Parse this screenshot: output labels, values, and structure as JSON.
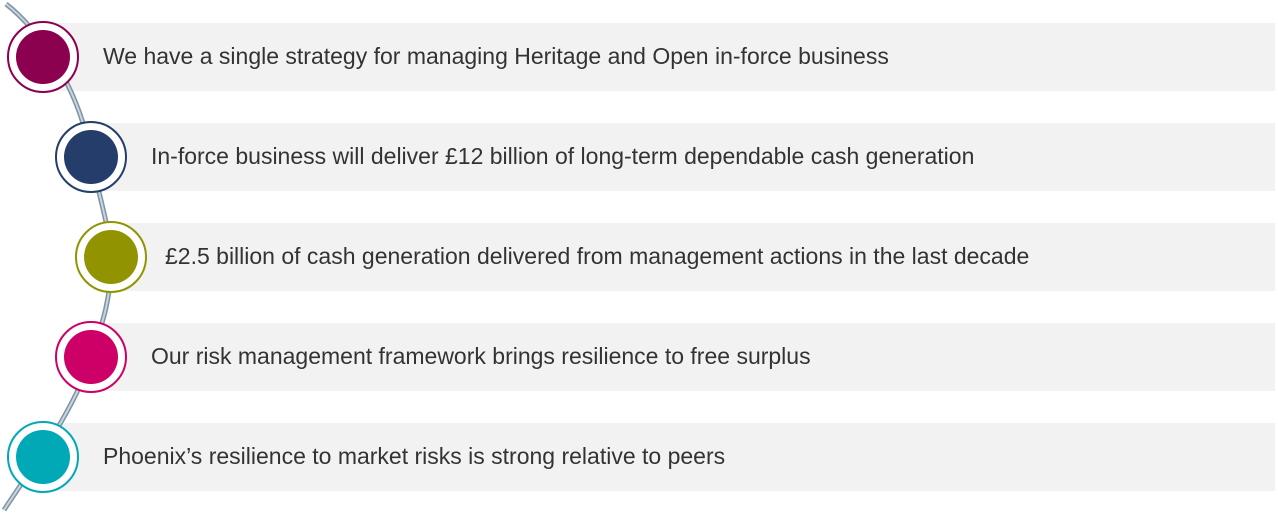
{
  "items": [
    {
      "text": "We have a single strategy for managing Heritage and Open in-force business",
      "color": "#8c0050"
    },
    {
      "text": "In-force business will deliver £12 billion of long-term dependable cash generation",
      "color": "#253d6b"
    },
    {
      "text": "£2.5 billion of cash generation delivered from management actions in the last decade",
      "color": "#919400"
    },
    {
      "text": "Our risk management framework brings resilience to free surplus",
      "color": "#cc0066"
    },
    {
      "text": "Phoenix’s resilience to market risks is strong relative to peers",
      "color": "#00a9b5"
    }
  ]
}
